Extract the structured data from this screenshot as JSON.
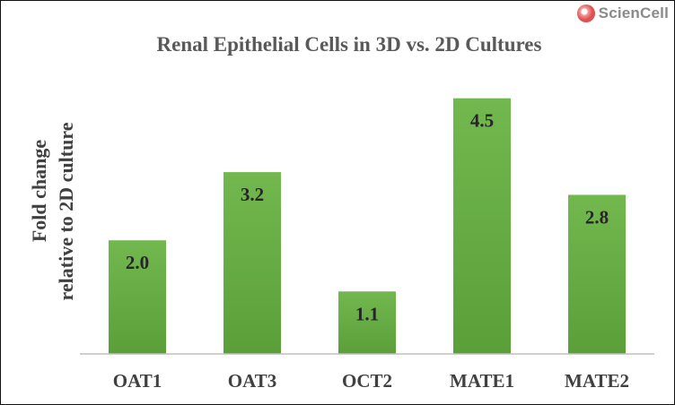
{
  "logo": {
    "text": "ScienCell"
  },
  "chart_data": {
    "type": "bar",
    "title": "Renal Epithelial Cells in 3D vs. 2D Cultures",
    "ylabel_lines": [
      "Fold change",
      "relative to 2D culture"
    ],
    "xlabel": "",
    "categories": [
      "OAT1",
      "OAT3",
      "OCT2",
      "MATE1",
      "MATE2"
    ],
    "values": [
      2.0,
      3.2,
      1.1,
      4.5,
      2.8
    ],
    "data_labels": [
      "2.0",
      "3.2",
      "1.1",
      "4.5",
      "2.8"
    ],
    "ylim": [
      0,
      4.7
    ],
    "grid": false,
    "legend": "none",
    "bar_color_top": "#72b84f",
    "bar_color_bottom": "#5a9f38",
    "axis_color": "#bfbfbf"
  }
}
